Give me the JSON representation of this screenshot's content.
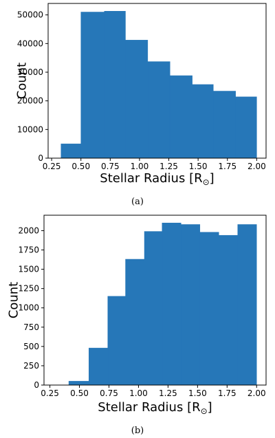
{
  "chart_data": [
    {
      "type": "bar",
      "subplot_label": "(a)",
      "xlabel": "Stellar Radius [R",
      "xlabel_unit_symbol": "⊙",
      "xlabel_close": "]",
      "ylabel": "Count",
      "xlim": [
        0.22,
        2.08
      ],
      "ylim": [
        0,
        54000
      ],
      "xticks": [
        0.25,
        0.5,
        0.75,
        1.0,
        1.25,
        1.5,
        1.75,
        2.0
      ],
      "xtick_labels": [
        "0.25",
        "0.50",
        "0.75",
        "1.00",
        "1.25",
        "1.50",
        "1.75",
        "2.00"
      ],
      "yticks": [
        0,
        10000,
        20000,
        30000,
        40000,
        50000
      ],
      "ytick_labels": [
        "0",
        "10000",
        "20000",
        "30000",
        "40000",
        "50000"
      ],
      "bin_edges": [
        0.33,
        0.5,
        0.7,
        0.88,
        1.07,
        1.26,
        1.45,
        1.63,
        1.82,
        2.0
      ],
      "values": [
        5000,
        51000,
        51300,
        41200,
        33700,
        28800,
        25700,
        23400,
        21400
      ],
      "bar_color": "#2677b8"
    },
    {
      "type": "bar",
      "subplot_label": "(b)",
      "xlabel": "Stellar Radius [R",
      "xlabel_unit_symbol": "⊙",
      "xlabel_close": "]",
      "ylabel": "Count",
      "xlim": [
        0.2,
        2.08
      ],
      "ylim": [
        0,
        2200
      ],
      "xticks": [
        0.25,
        0.5,
        0.75,
        1.0,
        1.25,
        1.5,
        1.75,
        2.0
      ],
      "xtick_labels": [
        "0.25",
        "0.50",
        "0.75",
        "1.00",
        "1.25",
        "1.50",
        "1.75",
        "2.00"
      ],
      "yticks": [
        0,
        250,
        500,
        750,
        1000,
        1250,
        1500,
        1750,
        2000
      ],
      "ytick_labels": [
        "0",
        "250",
        "500",
        "750",
        "1000",
        "1250",
        "1500",
        "1750",
        "2000"
      ],
      "bin_edges": [
        0.41,
        0.58,
        0.74,
        0.89,
        1.05,
        1.2,
        1.36,
        1.52,
        1.68,
        1.84,
        2.0
      ],
      "values": [
        50,
        480,
        1150,
        1630,
        1990,
        2100,
        2080,
        1980,
        1940,
        2080
      ],
      "bar_color": "#2677b8"
    }
  ]
}
